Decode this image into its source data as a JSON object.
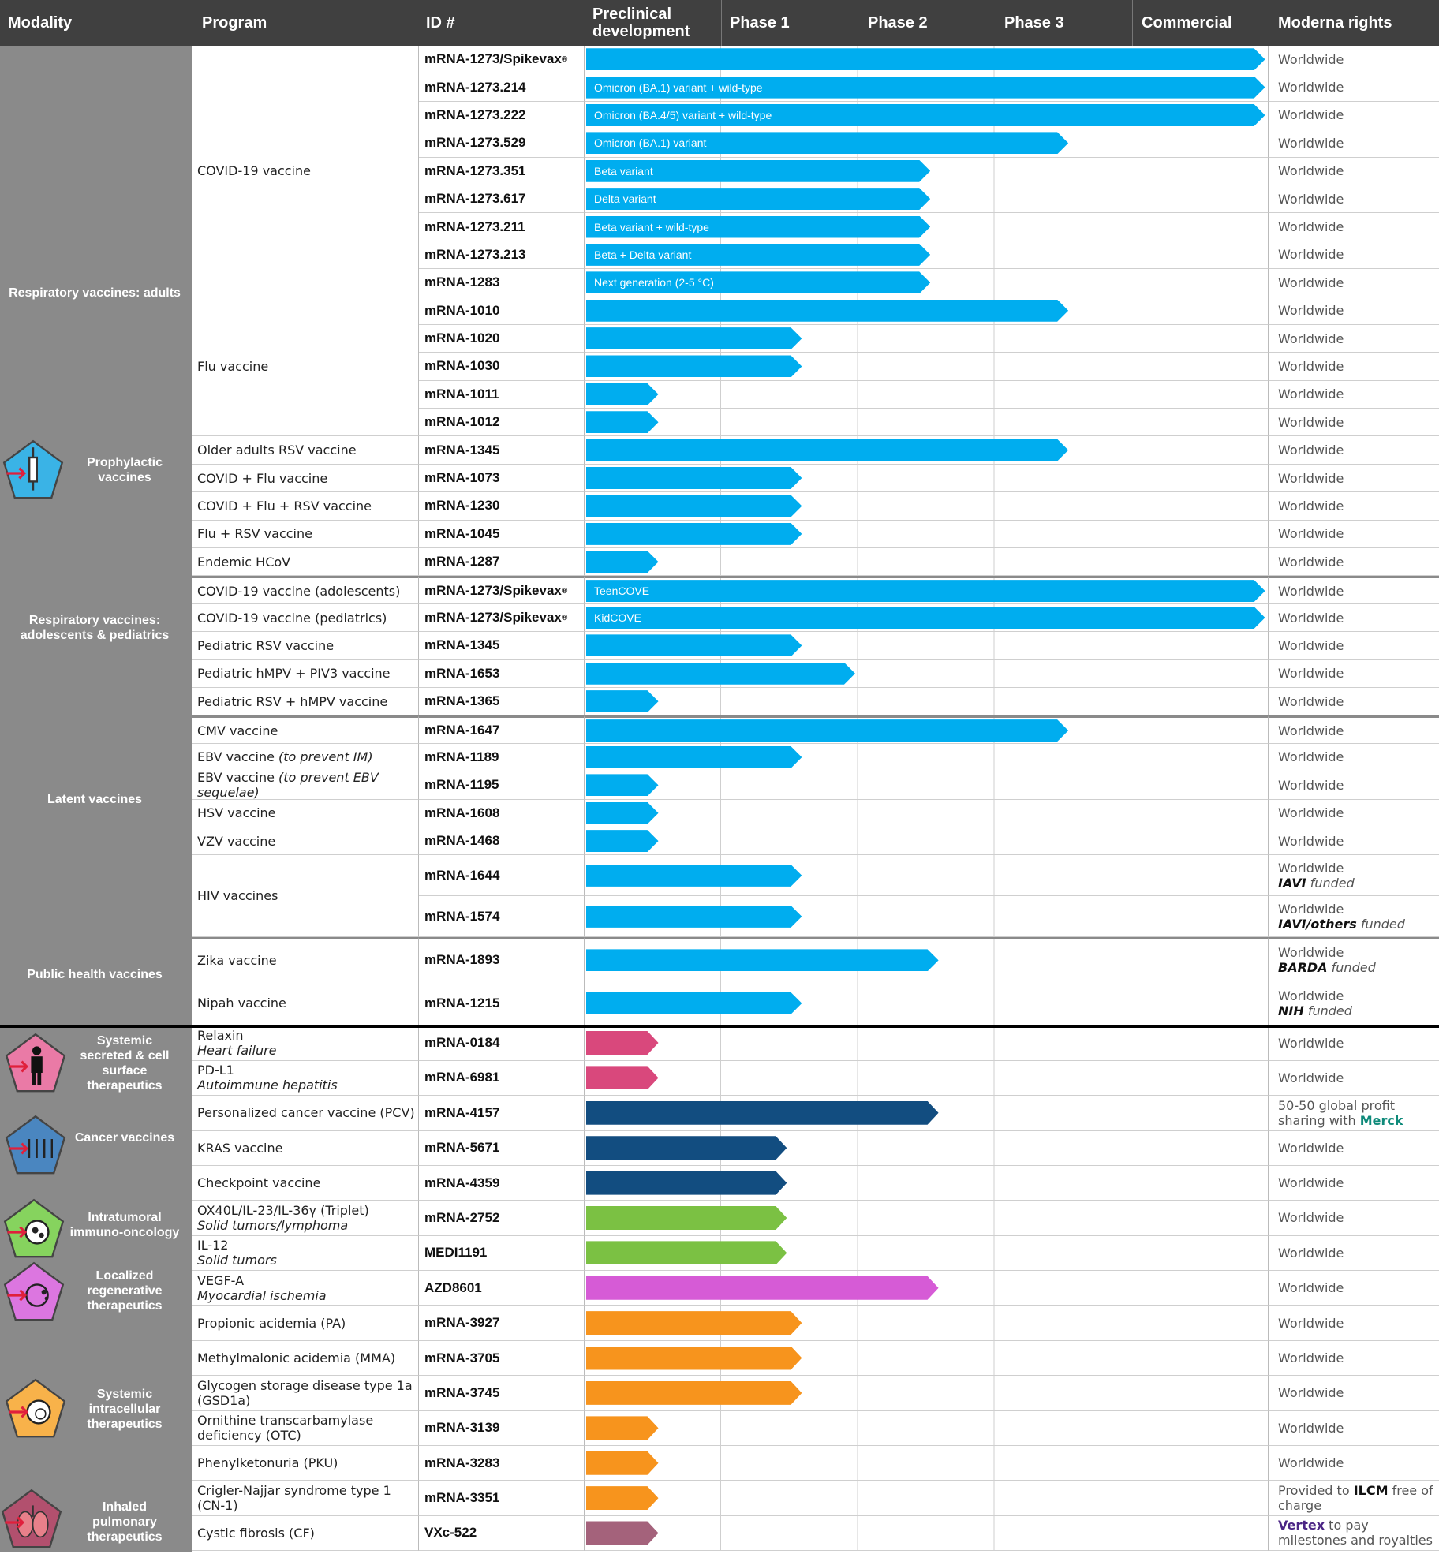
{
  "header": {
    "modality": "Modality",
    "program": "Program",
    "id": "ID #",
    "preclinical": "Preclinical development",
    "phase1": "Phase 1",
    "phase2": "Phase 2",
    "phase3": "Phase 3",
    "commercial": "Commercial",
    "rights": "Moderna rights"
  },
  "modalities": [
    {
      "label": "Respiratory vaccines: adults"
    },
    {
      "label": "Prophylactic vaccines",
      "icon": "syringe-icon",
      "color": "#3ab3e6"
    },
    {
      "label": "Respiratory vaccines: adolescents & pediatrics"
    },
    {
      "label": "Latent vaccines"
    },
    {
      "label": "Public health vaccines"
    },
    {
      "label": "Systemic secreted & cell surface therapeutics",
      "icon": "person-icon",
      "color": "#ea7aa6"
    },
    {
      "label": "Cancer vaccines",
      "icon": "vaccine-vials-icon",
      "color": "#4a86c0"
    },
    {
      "label": "Intratumoral immuno-oncology",
      "icon": "tumor-cell-icon",
      "color": "#86d35e"
    },
    {
      "label": "Localized regenerative therapeutics",
      "icon": "cell-regeneration-icon",
      "color": "#dc76e0"
    },
    {
      "label": "Systemic intracellular therapeutics",
      "icon": "cell-icon",
      "color": "#f8b24a"
    },
    {
      "label": "Inhaled pulmonary therapeutics",
      "icon": "lungs-icon",
      "color": "#b2506e"
    }
  ],
  "colors": {
    "cyan": "#00adef",
    "pink": "#d9487c",
    "navy": "#124d80",
    "green": "#7bc143",
    "magenta": "#d65bd6",
    "orange": "#f7941d",
    "mauve": "#a4627b"
  },
  "stage_scale": "bar_end in phase-column units: 0=start of Preclinical, 5=end of Commercial",
  "rows": [
    {
      "section": 0,
      "program": "COVID-19 vaccine",
      "program_span": 9,
      "id": "mRNA-1273/Spikevax",
      "reg": "®",
      "bar_label": "",
      "bar_end": 4.98,
      "color": "cyan",
      "rights": "Worldwide"
    },
    {
      "section": 0,
      "id": "mRNA-1273.214",
      "bar_label": "Omicron (BA.1) variant + wild-type",
      "bar_end": 4.98,
      "color": "cyan",
      "rights": "Worldwide"
    },
    {
      "section": 0,
      "id": "mRNA-1273.222",
      "bar_label": "Omicron (BA.4/5) variant + wild-type",
      "bar_end": 4.98,
      "color": "cyan",
      "rights": "Worldwide"
    },
    {
      "section": 0,
      "id": "mRNA-1273.529",
      "bar_label": "Omicron (BA.1) variant",
      "bar_end": 3.54,
      "color": "cyan",
      "rights": "Worldwide"
    },
    {
      "section": 0,
      "id": "mRNA-1273.351",
      "bar_label": "Beta variant",
      "bar_end": 2.53,
      "color": "cyan",
      "rights": "Worldwide"
    },
    {
      "section": 0,
      "id": "mRNA-1273.617",
      "bar_label": "Delta variant",
      "bar_end": 2.53,
      "color": "cyan",
      "rights": "Worldwide"
    },
    {
      "section": 0,
      "id": "mRNA-1273.211",
      "bar_label": "Beta variant + wild-type",
      "bar_end": 2.53,
      "color": "cyan",
      "rights": "Worldwide"
    },
    {
      "section": 0,
      "id": "mRNA-1273.213",
      "bar_label": "Beta + Delta variant",
      "bar_end": 2.53,
      "color": "cyan",
      "rights": "Worldwide"
    },
    {
      "section": 0,
      "id": "mRNA-1283",
      "bar_label": "Next generation (2-5 °C)",
      "bar_end": 2.53,
      "color": "cyan",
      "rights": "Worldwide"
    },
    {
      "section": 0,
      "program": "Flu vaccine",
      "program_span": 5,
      "id": "mRNA-1010",
      "bar_end": 3.54,
      "color": "cyan",
      "rights": "Worldwide"
    },
    {
      "section": 0,
      "id": "mRNA-1020",
      "bar_end": 1.59,
      "color": "cyan",
      "rights": "Worldwide"
    },
    {
      "section": 0,
      "id": "mRNA-1030",
      "bar_end": 1.59,
      "color": "cyan",
      "rights": "Worldwide"
    },
    {
      "section": 0,
      "id": "mRNA-1011",
      "bar_end": 0.54,
      "color": "cyan",
      "rights": "Worldwide"
    },
    {
      "section": 0,
      "id": "mRNA-1012",
      "bar_end": 0.54,
      "color": "cyan",
      "rights": "Worldwide"
    },
    {
      "section": 0,
      "program": "Older adults RSV vaccine",
      "id": "mRNA-1345",
      "bar_end": 3.54,
      "color": "cyan",
      "rights": "Worldwide"
    },
    {
      "section": 0,
      "program": "COVID + Flu vaccine",
      "id": "mRNA-1073",
      "bar_end": 1.59,
      "color": "cyan",
      "rights": "Worldwide"
    },
    {
      "section": 0,
      "program": "COVID + Flu + RSV vaccine",
      "id": "mRNA-1230",
      "bar_end": 1.59,
      "color": "cyan",
      "rights": "Worldwide"
    },
    {
      "section": 0,
      "program": "Flu + RSV vaccine",
      "id": "mRNA-1045",
      "bar_end": 1.59,
      "color": "cyan",
      "rights": "Worldwide"
    },
    {
      "section": 0,
      "program": "Endemic HCoV",
      "id": "mRNA-1287",
      "bar_end": 0.54,
      "color": "cyan",
      "rights": "Worldwide"
    },
    {
      "section": 1,
      "program": "COVID-19 vaccine (adolescents)",
      "id": "mRNA-1273/Spikevax",
      "reg": "®",
      "bar_label": "TeenCOVE",
      "bar_end": 4.98,
      "color": "cyan",
      "rights": "Worldwide"
    },
    {
      "section": 1,
      "program": "COVID-19 vaccine (pediatrics)",
      "id": "mRNA-1273/Spikevax",
      "reg": "®",
      "bar_label": "KidCOVE",
      "bar_end": 4.98,
      "color": "cyan",
      "rights": "Worldwide"
    },
    {
      "section": 1,
      "program": "Pediatric RSV vaccine",
      "id": "mRNA-1345",
      "bar_end": 1.59,
      "color": "cyan",
      "rights": "Worldwide"
    },
    {
      "section": 1,
      "program": "Pediatric hMPV + PIV3 vaccine",
      "id": "mRNA-1653",
      "bar_end": 1.98,
      "color": "cyan",
      "rights": "Worldwide"
    },
    {
      "section": 1,
      "program": "Pediatric RSV + hMPV vaccine",
      "id": "mRNA-1365",
      "bar_end": 0.54,
      "color": "cyan",
      "rights": "Worldwide"
    },
    {
      "section": 2,
      "program": "CMV vaccine",
      "id": "mRNA-1647",
      "bar_end": 3.54,
      "color": "cyan",
      "rights": "Worldwide"
    },
    {
      "section": 2,
      "program": "EBV vaccine ",
      "program_sub": "(to prevent IM)",
      "id": "mRNA-1189",
      "bar_end": 1.59,
      "color": "cyan",
      "rights": "Worldwide"
    },
    {
      "section": 2,
      "program": "EBV vaccine ",
      "program_sub": "(to prevent EBV sequelae)",
      "id": "mRNA-1195",
      "bar_end": 0.54,
      "color": "cyan",
      "rights": "Worldwide"
    },
    {
      "section": 2,
      "program": "HSV vaccine",
      "id": "mRNA-1608",
      "bar_end": 0.54,
      "color": "cyan",
      "rights": "Worldwide"
    },
    {
      "section": 2,
      "program": "VZV vaccine",
      "id": "mRNA-1468",
      "bar_end": 0.54,
      "color": "cyan",
      "rights": "Worldwide"
    },
    {
      "section": 2,
      "tall": true,
      "program": "HIV vaccines",
      "program_span": 2,
      "id": "mRNA-1644",
      "bar_end": 1.59,
      "color": "cyan",
      "rights": "Worldwide",
      "note_bold": "IAVI",
      "note": " funded"
    },
    {
      "section": 2,
      "tall": true,
      "id": "mRNA-1574",
      "bar_end": 1.59,
      "color": "cyan",
      "rights": "Worldwide",
      "note_bold": "IAVI/others",
      "note": " funded"
    },
    {
      "section": 3,
      "program": "Zika vaccine",
      "id": "mRNA-1893",
      "bar_end": 2.59,
      "color": "cyan",
      "rights": "Worldwide",
      "note_bold": "BARDA",
      "note": " funded"
    },
    {
      "section": 3,
      "program": "Nipah vaccine",
      "id": "mRNA-1215",
      "bar_end": 1.59,
      "color": "cyan",
      "rights": "Worldwide",
      "note_bold": "NIH",
      "note": " funded"
    },
    {
      "section": 4,
      "program": "Relaxin",
      "program_sub": "Heart failure",
      "id": "mRNA-0184",
      "bar_end": 0.54,
      "color": "pink",
      "rights": "Worldwide"
    },
    {
      "section": 4,
      "program": "PD-L1",
      "program_sub": "Autoimmune hepatitis",
      "id": "mRNA-6981",
      "bar_end": 0.54,
      "color": "pink",
      "rights": "Worldwide"
    },
    {
      "section": 4,
      "program": "Personalized cancer vaccine (PCV)",
      "id": "mRNA-4157",
      "bar_end": 2.59,
      "color": "navy",
      "rights": "50-50 global profit sharing with ",
      "rights_hl": "Merck",
      "rights_hl_color": "#0f8a7a"
    },
    {
      "section": 4,
      "program": "KRAS vaccine",
      "id": "mRNA-5671",
      "bar_end": 1.48,
      "color": "navy",
      "rights": "Worldwide"
    },
    {
      "section": 4,
      "program": "Checkpoint vaccine",
      "id": "mRNA-4359",
      "bar_end": 1.48,
      "color": "navy",
      "rights": "Worldwide"
    },
    {
      "section": 4,
      "program": "OX40L/IL-23/IL-36γ (Triplet)",
      "program_sub": "Solid tumors/lymphoma",
      "id": "mRNA-2752",
      "bar_end": 1.48,
      "color": "green",
      "rights": "Worldwide"
    },
    {
      "section": 4,
      "program": "IL-12",
      "program_sub": "Solid tumors",
      "id": "MEDI1191",
      "bar_end": 1.48,
      "color": "green",
      "rights": "Worldwide"
    },
    {
      "section": 4,
      "program": "VEGF-A",
      "program_sub": "Myocardial ischemia",
      "id": "AZD8601",
      "bar_end": 2.59,
      "color": "magenta",
      "rights": "Worldwide"
    },
    {
      "section": 4,
      "program": "Propionic acidemia (PA)",
      "id": "mRNA-3927",
      "bar_end": 1.59,
      "color": "orange",
      "rights": "Worldwide"
    },
    {
      "section": 4,
      "program": "Methylmalonic acidemia (MMA)",
      "id": "mRNA-3705",
      "bar_end": 1.59,
      "color": "orange",
      "rights": "Worldwide"
    },
    {
      "section": 4,
      "program": "Glycogen storage disease type 1a (GSD1a)",
      "id": "mRNA-3745",
      "bar_end": 1.59,
      "color": "orange",
      "rights": "Worldwide"
    },
    {
      "section": 4,
      "program": "Ornithine transcarbamylase deficiency (OTC)",
      "id": "mRNA-3139",
      "bar_end": 0.54,
      "color": "orange",
      "rights": "Worldwide"
    },
    {
      "section": 4,
      "program": "Phenylketonuria (PKU)",
      "id": "mRNA-3283",
      "bar_end": 0.54,
      "color": "orange",
      "rights": "Worldwide"
    },
    {
      "section": 4,
      "program": "Crigler-Najjar syndrome type 1 (CN-1)",
      "id": "mRNA-3351",
      "bar_end": 0.54,
      "color": "orange",
      "rights": "Provided to ",
      "rights_bold": "ILCM",
      "rights_after": " free of charge"
    },
    {
      "section": 4,
      "program": "Cystic fibrosis (CF)",
      "id": "VXc-522",
      "bar_end": 0.54,
      "color": "mauve",
      "rights_hl": "Vertex",
      "rights_hl_color": "#4b2585",
      "rights_hl_first": true,
      "rights": " to pay milestones and royalties"
    }
  ]
}
